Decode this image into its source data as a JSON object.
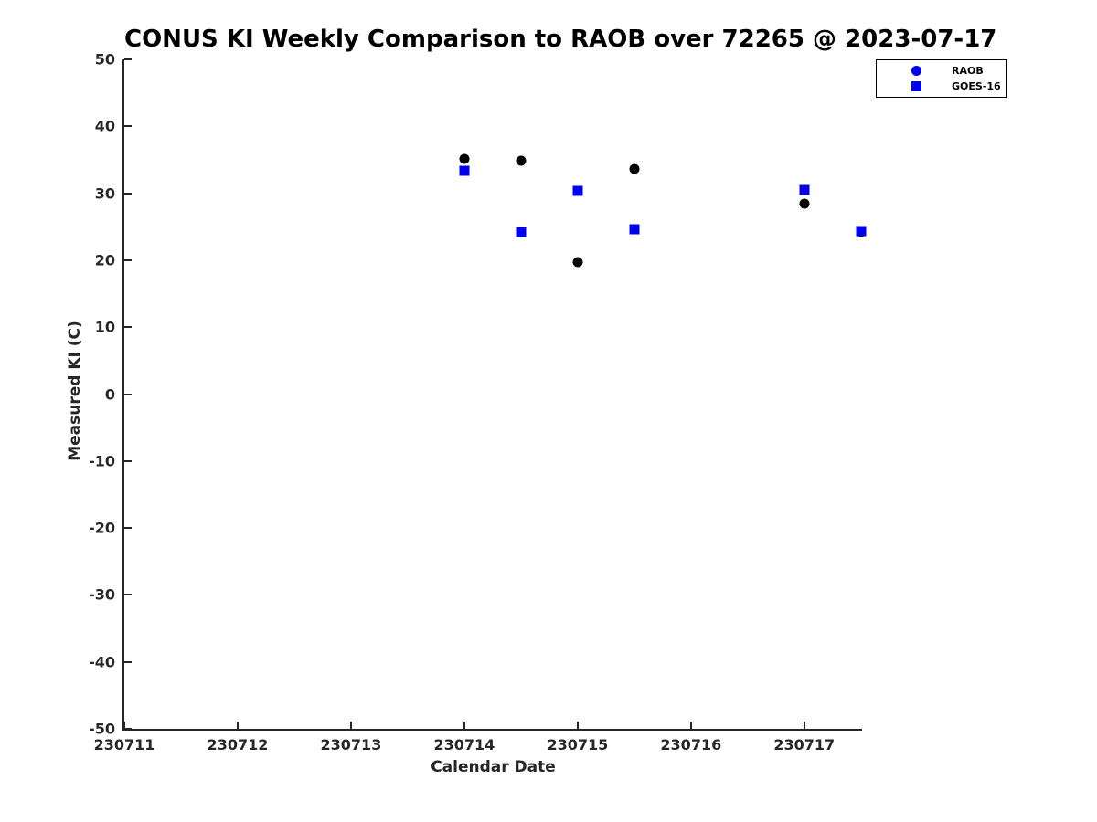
{
  "chart_data": {
    "type": "scatter",
    "title": "CONUS KI Weekly Comparison to RAOB over 72265 @ 2023-07-17",
    "xlabel": "Calendar Date",
    "ylabel": "Measured KI (C)",
    "xlim": [
      230711,
      230717.51
    ],
    "ylim": [
      -50,
      50
    ],
    "x_ticks": [
      230711,
      230712,
      230713,
      230714,
      230715,
      230716,
      230717
    ],
    "y_ticks": [
      50,
      40,
      30,
      20,
      10,
      0,
      -10,
      -20,
      -30,
      -40,
      -50
    ],
    "grid": false,
    "legend_position": "top-right-outside",
    "series": [
      {
        "name": "RAOB",
        "marker": "circle",
        "color": "#000000",
        "legend_color": "#0000ee",
        "points": [
          [
            230714.0,
            35.1
          ],
          [
            230714.5,
            34.8
          ],
          [
            230715.0,
            19.7
          ],
          [
            230715.5,
            33.6
          ],
          [
            230717.0,
            28.5
          ],
          [
            230717.5,
            24.2
          ]
        ]
      },
      {
        "name": "GOES-16",
        "marker": "square",
        "color": "#0000ee",
        "legend_color": "#0000ee",
        "points": [
          [
            230714.0,
            33.4
          ],
          [
            230714.5,
            24.2
          ],
          [
            230715.0,
            30.3
          ],
          [
            230715.5,
            24.6
          ],
          [
            230717.0,
            30.5
          ],
          [
            230717.5,
            24.3
          ]
        ]
      }
    ]
  },
  "colors": {
    "axis": "#262626",
    "title": "#000000",
    "background": "#ffffff"
  }
}
